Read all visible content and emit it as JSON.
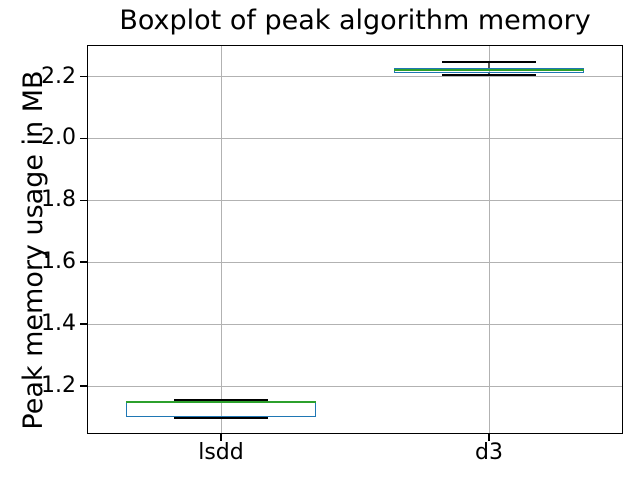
{
  "chart_data": {
    "type": "boxplot",
    "title": "Boxplot of peak algorithm memory",
    "ylabel": "Peak memory usage in MB",
    "xlabel": "",
    "categories": [
      "lsdd",
      "d3"
    ],
    "series": [
      {
        "name": "lsdd",
        "whisker_low": 1.098,
        "q1": 1.101,
        "median": 1.147,
        "q3": 1.149,
        "whisker_high": 1.156
      },
      {
        "name": "d3",
        "whisker_low": 2.206,
        "q1": 2.213,
        "median": 2.22,
        "q3": 2.227,
        "whisker_high": 2.246
      }
    ],
    "yticks": [
      1.2,
      1.4,
      1.6,
      1.8,
      2.0,
      2.2
    ],
    "ytick_labels": [
      "1.2",
      "1.4",
      "1.6",
      "1.8",
      "2.0",
      "2.2"
    ],
    "ylim": [
      1.045,
      2.302
    ],
    "grid": true,
    "legend": null,
    "colors": {
      "box": "#1f77b4",
      "median": "#2ca02c",
      "whisker": "#555555",
      "cap": "#000000",
      "grid": "#b2b2b2",
      "spine": "#000000",
      "text": "#000000",
      "background": "#ffffff"
    }
  }
}
